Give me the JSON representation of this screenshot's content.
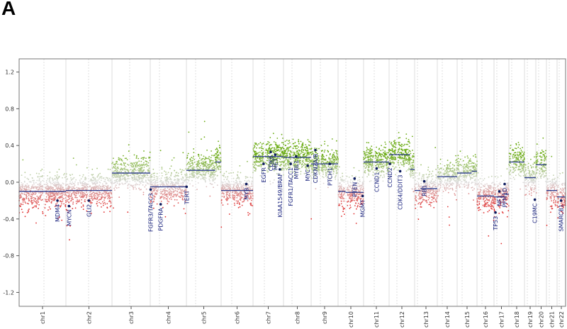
{
  "panel_label": "A",
  "chart_data": {
    "type": "scatter",
    "title": "",
    "xlabel": "",
    "ylabel": "",
    "ylim": [
      -1.35,
      1.35
    ],
    "yticks": [
      "1.2",
      "0.8",
      "0.4",
      "0.0",
      "-0.4",
      "-0.8",
      "-1.2"
    ],
    "ytick_values": [
      1.2,
      0.8,
      0.4,
      0.0,
      -0.4,
      -0.8,
      -1.2
    ],
    "grid": false,
    "colors": {
      "gain": "#6aab12",
      "loss": "#e02a2a",
      "neutral": "#dcdcdc",
      "segment": "#2b3a8c",
      "gene": "#0d1b5e",
      "gene_label": "#1a237e"
    },
    "chromosomes": [
      {
        "name": "chr1",
        "length_mb": 249
      },
      {
        "name": "chr2",
        "length_mb": 243
      },
      {
        "name": "chr3",
        "length_mb": 198
      },
      {
        "name": "chr4",
        "length_mb": 191
      },
      {
        "name": "chr5",
        "length_mb": 181
      },
      {
        "name": "chr6",
        "length_mb": 171
      },
      {
        "name": "chr7",
        "length_mb": 159
      },
      {
        "name": "chr8",
        "length_mb": 146
      },
      {
        "name": "chr9",
        "length_mb": 141
      },
      {
        "name": "chr10",
        "length_mb": 136
      },
      {
        "name": "chr11",
        "length_mb": 135
      },
      {
        "name": "chr12",
        "length_mb": 134
      },
      {
        "name": "chr13",
        "length_mb": 115
      },
      {
        "name": "chr14",
        "length_mb": 107
      },
      {
        "name": "chr15",
        "length_mb": 103
      },
      {
        "name": "chr16",
        "length_mb": 90
      },
      {
        "name": "chr17",
        "length_mb": 81
      },
      {
        "name": "chr18",
        "length_mb": 78
      },
      {
        "name": "chr19",
        "length_mb": 59
      },
      {
        "name": "chr20",
        "length_mb": 63
      },
      {
        "name": "chr21",
        "length_mb": 48
      },
      {
        "name": "chr22",
        "length_mb": 51
      }
    ],
    "segments": [
      {
        "chr": 1,
        "start_mb": 0,
        "end_mb": 249,
        "value": -0.1
      },
      {
        "chr": 2,
        "start_mb": 0,
        "end_mb": 243,
        "value": -0.09
      },
      {
        "chr": 3,
        "start_mb": 0,
        "end_mb": 198,
        "value": 0.1
      },
      {
        "chr": 4,
        "start_mb": 0,
        "end_mb": 191,
        "value": -0.05
      },
      {
        "chr": 5,
        "start_mb": 0,
        "end_mb": 150,
        "value": 0.13
      },
      {
        "chr": 5,
        "start_mb": 150,
        "end_mb": 181,
        "value": 0.22
      },
      {
        "chr": 6,
        "start_mb": 0,
        "end_mb": 171,
        "value": -0.09
      },
      {
        "chr": 7,
        "start_mb": 0,
        "end_mb": 159,
        "value": 0.28
      },
      {
        "chr": 8,
        "start_mb": 0,
        "end_mb": 146,
        "value": 0.27
      },
      {
        "chr": 9,
        "start_mb": 0,
        "end_mb": 141,
        "value": 0.2
      },
      {
        "chr": 10,
        "start_mb": 0,
        "end_mb": 40,
        "value": -0.1
      },
      {
        "chr": 10,
        "start_mb": 40,
        "end_mb": 136,
        "value": -0.11
      },
      {
        "chr": 11,
        "start_mb": 0,
        "end_mb": 135,
        "value": 0.22
      },
      {
        "chr": 12,
        "start_mb": 0,
        "end_mb": 110,
        "value": 0.3
      },
      {
        "chr": 12,
        "start_mb": 110,
        "end_mb": 134,
        "value": 0.14
      },
      {
        "chr": 13,
        "start_mb": 0,
        "end_mb": 30,
        "value": -0.09
      },
      {
        "chr": 13,
        "start_mb": 30,
        "end_mb": 115,
        "value": -0.07
      },
      {
        "chr": 14,
        "start_mb": 0,
        "end_mb": 107,
        "value": 0.06
      },
      {
        "chr": 15,
        "start_mb": 0,
        "end_mb": 75,
        "value": 0.1
      },
      {
        "chr": 15,
        "start_mb": 75,
        "end_mb": 103,
        "value": 0.12
      },
      {
        "chr": 16,
        "start_mb": 0,
        "end_mb": 90,
        "value": -0.15
      },
      {
        "chr": 17,
        "start_mb": 0,
        "end_mb": 55,
        "value": -0.16
      },
      {
        "chr": 17,
        "start_mb": 55,
        "end_mb": 81,
        "value": -0.13
      },
      {
        "chr": 18,
        "start_mb": 0,
        "end_mb": 78,
        "value": 0.22
      },
      {
        "chr": 19,
        "start_mb": 0,
        "end_mb": 59,
        "value": 0.05
      },
      {
        "chr": 20,
        "start_mb": 0,
        "end_mb": 63,
        "value": 0.19
      },
      {
        "chr": 21,
        "start_mb": 0,
        "end_mb": 48,
        "value": -0.09
      },
      {
        "chr": 22,
        "start_mb": 0,
        "end_mb": 51,
        "value": -0.16
      }
    ],
    "genes": [
      {
        "name": "MDM4",
        "chr": 1,
        "pos_mb": 204,
        "value": -0.2
      },
      {
        "name": "MYCN",
        "chr": 2,
        "pos_mb": 16,
        "value": -0.26
      },
      {
        "name": "GLI2",
        "chr": 2,
        "pos_mb": 121,
        "value": -0.2
      },
      {
        "name": "FGFR3/TACC3",
        "chr": 4,
        "pos_mb": 2,
        "value": -0.08
      },
      {
        "name": "PDGFRA",
        "chr": 4,
        "pos_mb": 55,
        "value": -0.24
      },
      {
        "name": "TERT",
        "chr": 5,
        "pos_mb": 1,
        "value": -0.05
      },
      {
        "name": "MYB",
        "chr": 6,
        "pos_mb": 135,
        "value": -0.02
      },
      {
        "name": "EGFR",
        "chr": 7,
        "pos_mb": 55,
        "value": 0.2
      },
      {
        "name": "CDK6",
        "chr": 7,
        "pos_mb": 92,
        "value": 0.33
      },
      {
        "name": "MET",
        "chr": 7,
        "pos_mb": 116,
        "value": 0.3
      },
      {
        "name": "KIAA1549/BRAF",
        "chr": 7,
        "pos_mb": 140,
        "value": 0.14
      },
      {
        "name": "FGFR1/TACC1",
        "chr": 8,
        "pos_mb": 38,
        "value": 0.2
      },
      {
        "name": "MYBL1",
        "chr": 8,
        "pos_mb": 67,
        "value": 0.28
      },
      {
        "name": "MYC",
        "chr": 8,
        "pos_mb": 128,
        "value": 0.18
      },
      {
        "name": "CDKN2A/B",
        "chr": 9,
        "pos_mb": 22,
        "value": 0.35
      },
      {
        "name": "PTCH1",
        "chr": 9,
        "pos_mb": 98,
        "value": 0.2
      },
      {
        "name": "PTEN",
        "chr": 10,
        "pos_mb": 88,
        "value": 0.04
      },
      {
        "name": "MGMT",
        "chr": 10,
        "pos_mb": 131,
        "value": -0.15
      },
      {
        "name": "CCND1",
        "chr": 11,
        "pos_mb": 69,
        "value": 0.15
      },
      {
        "name": "CCND2",
        "chr": 12,
        "pos_mb": 4,
        "value": 0.2
      },
      {
        "name": "CDK4/DDIT3",
        "chr": 12,
        "pos_mb": 58,
        "value": 0.12
      },
      {
        "name": "RB1",
        "chr": 13,
        "pos_mb": 49,
        "value": 0.01
      },
      {
        "name": "TP53",
        "chr": 17,
        "pos_mb": 8,
        "value": -0.33
      },
      {
        "name": "NF1",
        "chr": 17,
        "pos_mb": 29,
        "value": -0.1
      },
      {
        "name": "PPM1D",
        "chr": 17,
        "pos_mb": 58,
        "value": -0.02
      },
      {
        "name": "C19MC",
        "chr": 19,
        "pos_mb": 54,
        "value": -0.19
      },
      {
        "name": "SMARCB1",
        "chr": 22,
        "pos_mb": 24,
        "value": -0.2
      }
    ]
  }
}
